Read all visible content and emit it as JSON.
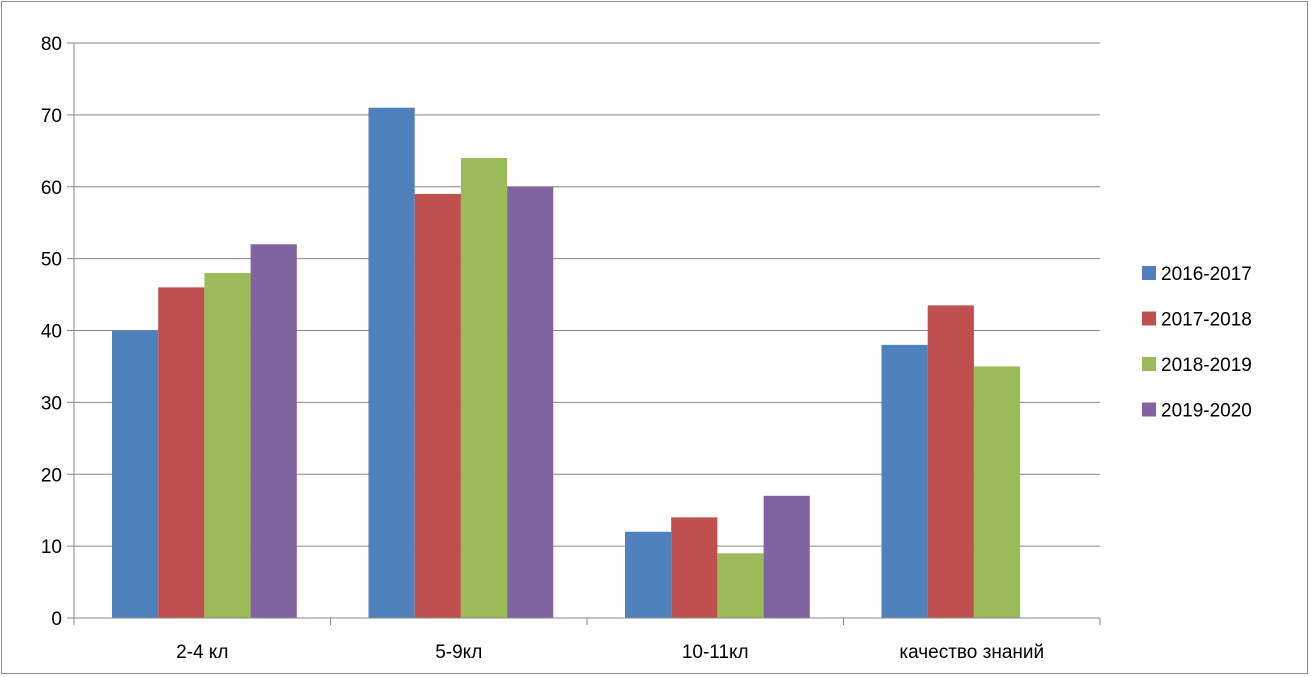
{
  "chart_data": {
    "type": "bar",
    "categories": [
      "2-4 кл",
      "5-9кл",
      "10-11кл",
      "качество знаний"
    ],
    "series": [
      {
        "name": "2016-2017",
        "color": "#4f81bd",
        "values": [
          40,
          71,
          12,
          38
        ]
      },
      {
        "name": "2017-2018",
        "color": "#c0504d",
        "values": [
          46,
          59,
          14,
          43.5
        ]
      },
      {
        "name": "2018-2019",
        "color": "#9bbb59",
        "values": [
          48,
          64,
          9,
          35
        ]
      },
      {
        "name": "2019-2020",
        "color": "#8064a2",
        "values": [
          52,
          60,
          17,
          null
        ]
      }
    ],
    "yticks": [
      0,
      10,
      20,
      30,
      40,
      50,
      60,
      70,
      80
    ],
    "ylim": [
      0,
      80
    ],
    "grid": true,
    "legend": "right",
    "title": "",
    "xlabel": "",
    "ylabel": ""
  }
}
